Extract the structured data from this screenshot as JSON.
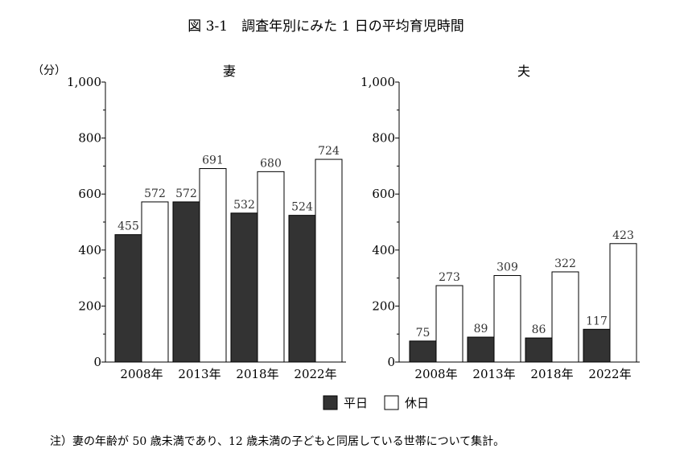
{
  "title": "図 3-1　調査年別にみた 1 日の平均育児時間",
  "unit_label": "（分）",
  "note": "注）妻の年齢が 50 歳未満であり、12 歳未満の子どもと同居している世帯について集計。",
  "legend": [
    {
      "name": "平日",
      "color": "#333333"
    },
    {
      "name": "休日",
      "color": "#ffffff"
    }
  ],
  "chart_data": [
    {
      "type": "bar",
      "title": "妻",
      "categories": [
        "2008年",
        "2013年",
        "2018年",
        "2022年"
      ],
      "series": [
        {
          "name": "平日",
          "values": [
            455,
            572,
            532,
            524
          ]
        },
        {
          "name": "休日",
          "values": [
            572,
            691,
            680,
            724
          ]
        }
      ],
      "ylim": [
        0,
        1000
      ],
      "yticks": [
        "0",
        "200",
        "400",
        "600",
        "800",
        "1,000"
      ],
      "grid": false
    },
    {
      "type": "bar",
      "title": "夫",
      "categories": [
        "2008年",
        "2013年",
        "2018年",
        "2022年"
      ],
      "series": [
        {
          "name": "平日",
          "values": [
            75,
            89,
            86,
            117
          ]
        },
        {
          "name": "休日",
          "values": [
            273,
            309,
            322,
            423
          ]
        }
      ],
      "ylim": [
        0,
        1000
      ],
      "yticks": [
        "0",
        "200",
        "400",
        "600",
        "800",
        "1,000"
      ],
      "grid": false
    }
  ]
}
